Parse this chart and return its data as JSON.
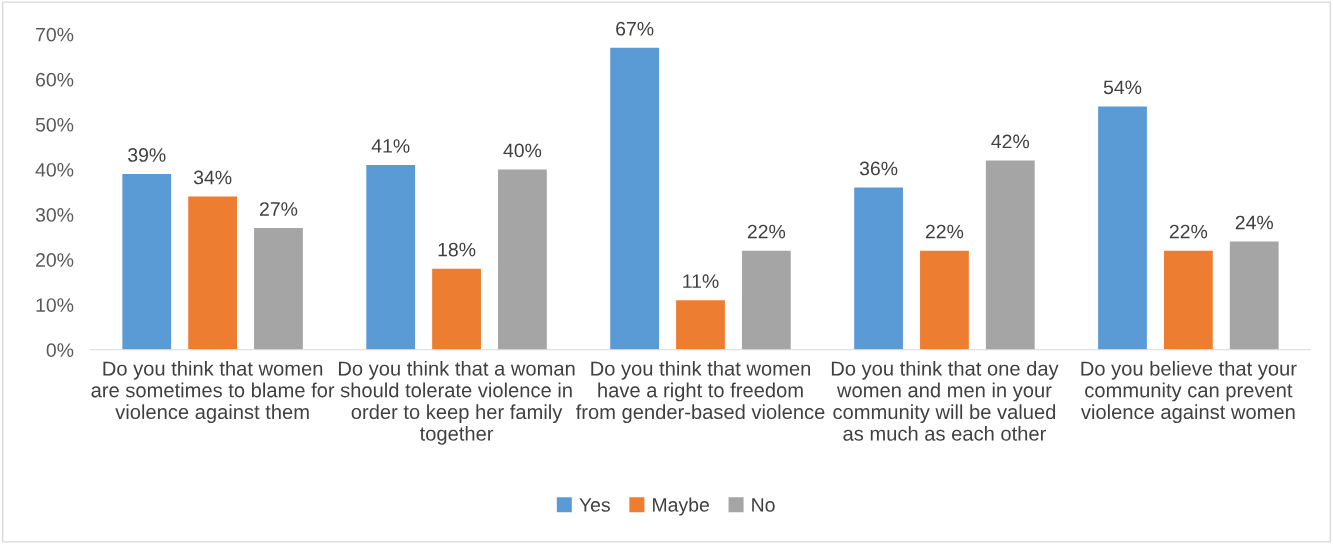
{
  "chart_data": {
    "type": "bar",
    "categories": [
      "Do you think that women\nare sometimes to blame for\nviolence against them",
      "Do you think that a woman\nshould tolerate violence in\norder to keep her family\ntogether",
      "Do you think that women\nhave a right to freedom\nfrom gender-based violence",
      "Do you think that one day\nwomen and men in your\ncommunity will be valued\nas much as each other",
      "Do you believe that your\ncommunity can prevent\nviolence against women"
    ],
    "series": [
      {
        "name": "Yes",
        "color": "#5b9bd5",
        "values": [
          39,
          41,
          67,
          36,
          54
        ],
        "value_labels": [
          "39%",
          "41%",
          "67%",
          "36%",
          "54%"
        ]
      },
      {
        "name": "Maybe",
        "color": "#ed7d31",
        "values": [
          34,
          18,
          11,
          22,
          22
        ],
        "value_labels": [
          "34%",
          "18%",
          "11%",
          "22%",
          "22%"
        ]
      },
      {
        "name": "No",
        "color": "#a5a5a5",
        "values": [
          27,
          40,
          22,
          42,
          24
        ],
        "value_labels": [
          "27%",
          "40%",
          "22%",
          "42%",
          "24%"
        ]
      }
    ],
    "ylim": [
      0,
      70
    ],
    "yticks": [
      {
        "value": 0,
        "label": "0%"
      },
      {
        "value": 10,
        "label": "10%"
      },
      {
        "value": 20,
        "label": "20%"
      },
      {
        "value": 30,
        "label": "30%"
      },
      {
        "value": 40,
        "label": "40%"
      },
      {
        "value": 50,
        "label": "50%"
      },
      {
        "value": 60,
        "label": "60%"
      },
      {
        "value": 70,
        "label": "70%"
      }
    ],
    "grid": false,
    "legend": "bottom"
  }
}
